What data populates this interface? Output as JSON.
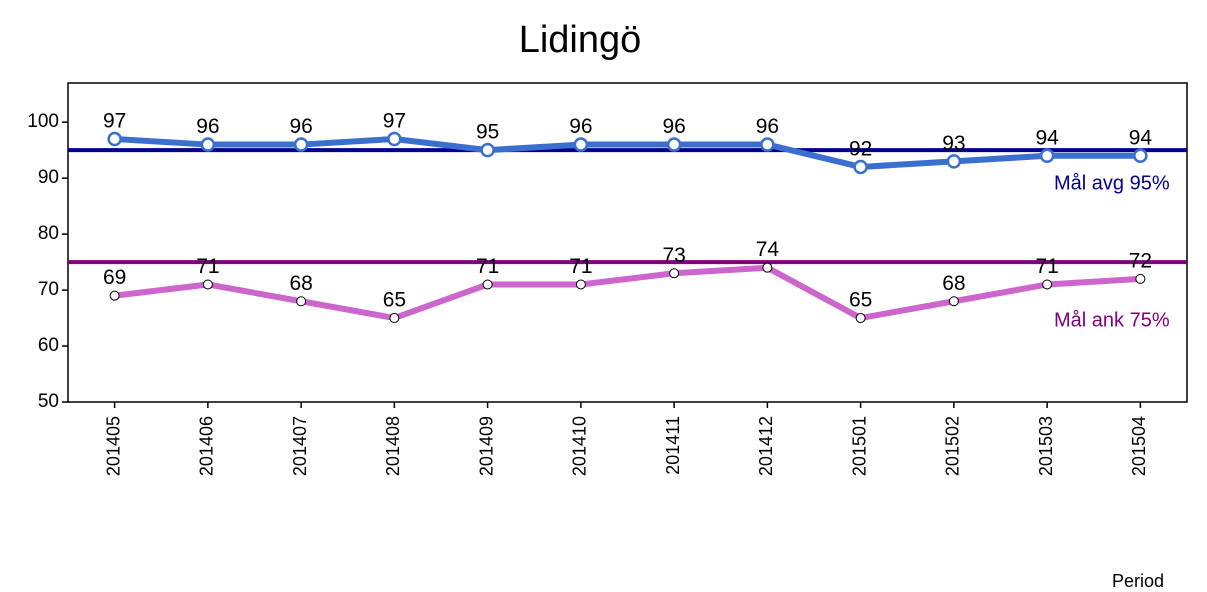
{
  "chart_data": {
    "type": "line",
    "title": "Lidingö",
    "x_label": "Period",
    "categories": [
      "201405",
      "201406",
      "201407",
      "201408",
      "201409",
      "201410",
      "201411",
      "201412",
      "201501",
      "201502",
      "201503",
      "201504"
    ],
    "series": [
      {
        "color": "#3a6fd0",
        "marker": "open-circle",
        "values": [
          97,
          96,
          96,
          97,
          95,
          96,
          96,
          96,
          92,
          93,
          94,
          94
        ]
      },
      {
        "color": "#cc66cc",
        "marker": "small-circle",
        "values": [
          69,
          71,
          68,
          65,
          71,
          71,
          73,
          74,
          65,
          68,
          71,
          72
        ]
      }
    ],
    "reference_lines": [
      {
        "value": 95,
        "label": "Mål avg 95%",
        "color": "#00008b"
      },
      {
        "value": 75,
        "label": "Mål ank 75%",
        "color": "#800080"
      }
    ],
    "ylim": [
      50,
      107
    ],
    "yticks": [
      50,
      60,
      70,
      80,
      90,
      100
    ],
    "grid": false
  }
}
